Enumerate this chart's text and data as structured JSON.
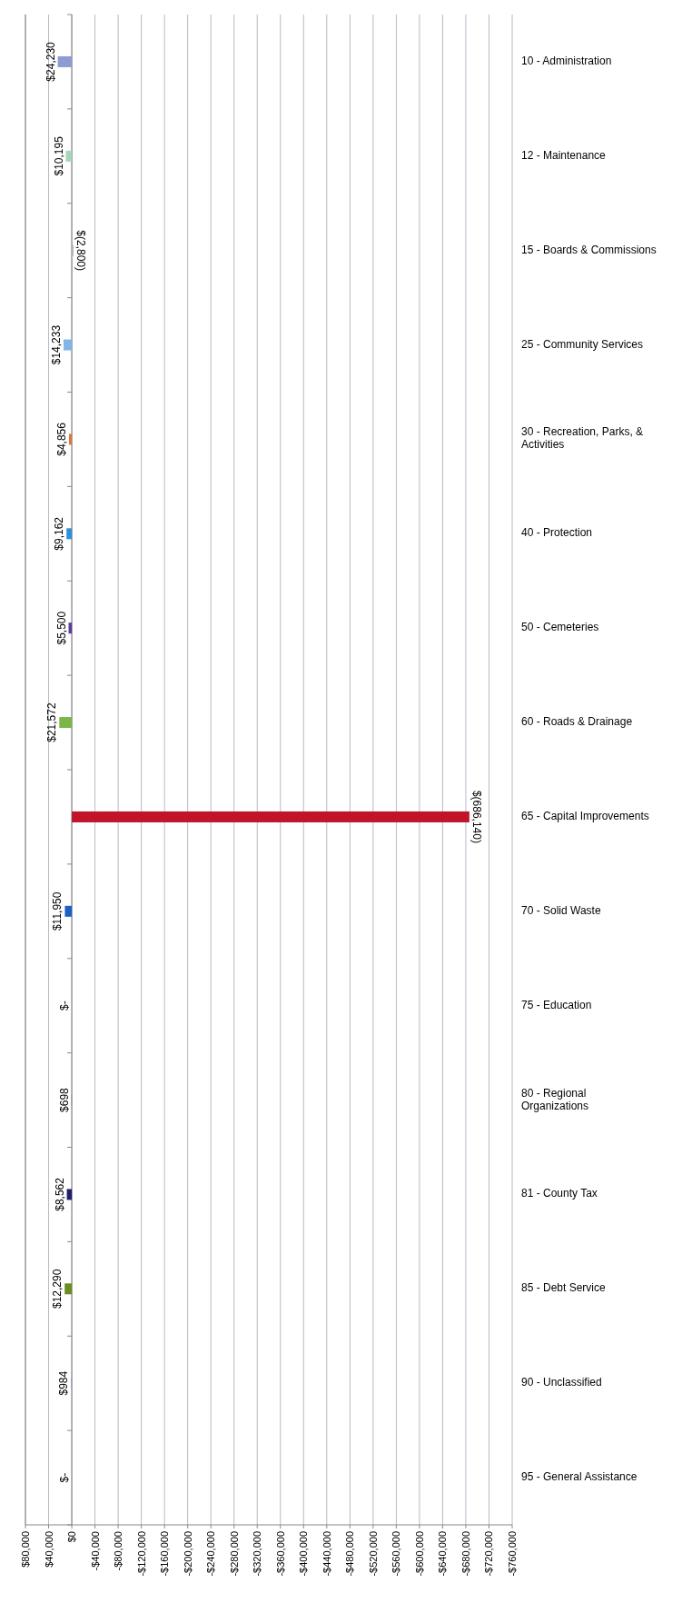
{
  "chart_data": {
    "type": "bar",
    "orientation": "horizontal",
    "categories": [
      "10 - Administration",
      "12 - Maintenance",
      "15 - Boards & Commissions",
      "25 - Community Services",
      "30 - Recreation, Parks, & Activities",
      "40 - Protection",
      "50 - Cemeteries",
      "60 - Roads & Drainage",
      "65 - Capital Improvements",
      "70 - Solid Waste",
      "75 - Education",
      "80 - Regional Organizations",
      "81 - County Tax",
      "85 - Debt Service",
      "90 - Unclassified",
      "95 - General Assistance"
    ],
    "values": [
      24230,
      10195,
      -2800,
      14233,
      4856,
      9162,
      5500,
      21572,
      -686140,
      11950,
      0,
      698,
      8562,
      12290,
      984,
      0
    ],
    "colors": [
      "#8e9bd0",
      "#a8d5b5",
      "#b0b0b0",
      "#7fb6e6",
      "#e0763a",
      "#2f8fd6",
      "#5a3d9a",
      "#7ab648",
      "#c0142a",
      "#1f5fbf",
      "#888888",
      "#b07b5a",
      "#1f1f6e",
      "#6b8e23",
      "#7a9cc6",
      "#888888"
    ],
    "value_labels": [
      "$24,230",
      "$10,195",
      "$(2,800)",
      "$14,233",
      "$4,856",
      "$9,162",
      "$5,500",
      "$21,572",
      "$(686,140)",
      "$11,950",
      "$-",
      "$698",
      "$8,562",
      "$12,290",
      "$984",
      "$-"
    ],
    "xlim": [
      80000,
      -760000
    ],
    "xticks": [
      {
        "value": 80000,
        "label": "$80,000"
      },
      {
        "value": 40000,
        "label": "$40,000"
      },
      {
        "value": 0,
        "label": "$0"
      },
      {
        "value": -40000,
        "label": "-$40,000"
      },
      {
        "value": -80000,
        "label": "-$80,000"
      },
      {
        "value": -120000,
        "label": "-$120,000"
      },
      {
        "value": -160000,
        "label": "-$160,000"
      },
      {
        "value": -200000,
        "label": "-$200,000"
      },
      {
        "value": -240000,
        "label": "-$240,000"
      },
      {
        "value": -280000,
        "label": "-$280,000"
      },
      {
        "value": -320000,
        "label": "-$320,000"
      },
      {
        "value": -360000,
        "label": "-$360,000"
      },
      {
        "value": -400000,
        "label": "-$400,000"
      },
      {
        "value": -440000,
        "label": "-$440,000"
      },
      {
        "value": -480000,
        "label": "-$480,000"
      },
      {
        "value": -520000,
        "label": "-$520,000"
      },
      {
        "value": -560000,
        "label": "-$560,000"
      },
      {
        "value": -600000,
        "label": "-$600,000"
      },
      {
        "value": -640000,
        "label": "-$640,000"
      },
      {
        "value": -680000,
        "label": "-$680,000"
      },
      {
        "value": -720000,
        "label": "-$720,000"
      },
      {
        "value": -760000,
        "label": "-$760,000"
      }
    ],
    "grid": "x"
  }
}
